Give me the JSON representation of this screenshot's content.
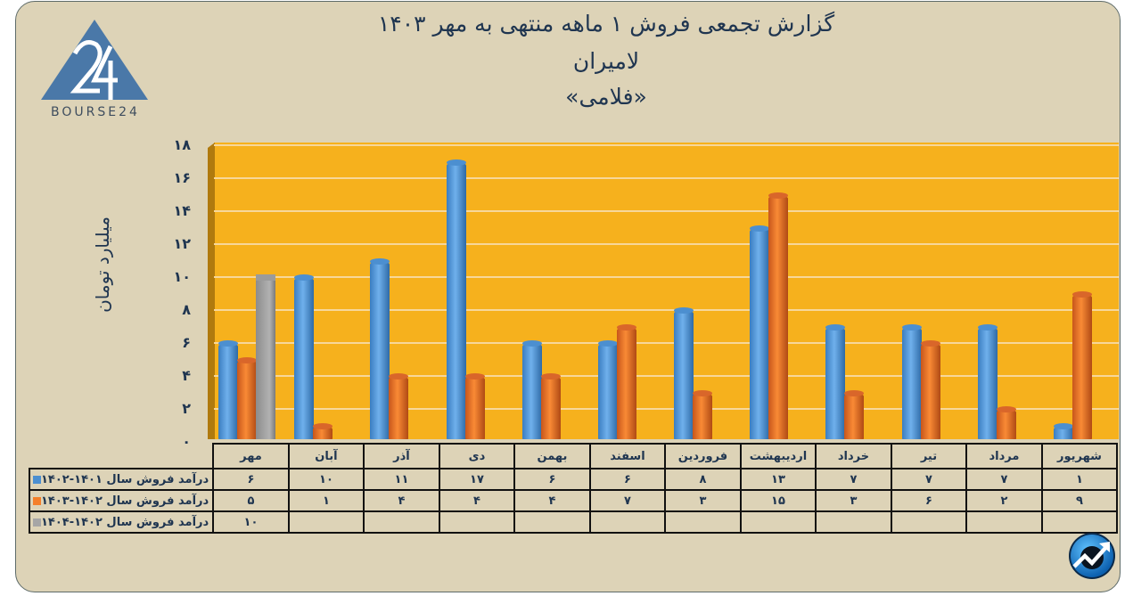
{
  "header": {
    "title_line1": "گزارش تجمعی فروش ۱ ماهه منتهی به مهر ۱۴۰۳",
    "title_line2": "لامیران",
    "title_line3": "«فلامی»"
  },
  "logo": {
    "text": "BOURSE24",
    "mark": "24"
  },
  "axis": {
    "ylabel": "میلیارد تومان",
    "yticks": [
      "۰",
      "۲",
      "۴",
      "۶",
      "۸",
      "۱۰",
      "۱۲",
      "۱۴",
      "۱۶",
      "۱۸"
    ]
  },
  "colors": {
    "plot_bg": "#f6b11d",
    "series1": "#4c8fd0",
    "series2": "#f47f2a",
    "series3": "#a6a6a6",
    "page_bg": "#ddd3b7",
    "text": "#1f3550"
  },
  "table": {
    "months": [
      "مهر",
      "آبان",
      "آذر",
      "دی",
      "بهمن",
      "اسفند",
      "فروردین",
      "اردیبهشت",
      "خرداد",
      "تیر",
      "مرداد",
      "شهریور"
    ],
    "rows": [
      {
        "label": "درآمد فروش سال ۱۴۰۱-۱۴۰۲",
        "values": [
          "۶",
          "۱۰",
          "۱۱",
          "۱۷",
          "۶",
          "۶",
          "۸",
          "۱۳",
          "۷",
          "۷",
          "۷",
          "۱"
        ]
      },
      {
        "label": "درآمد فروش سال ۱۴۰۲-۱۴۰۳",
        "values": [
          "۵",
          "۱",
          "۴",
          "۴",
          "۴",
          "۷",
          "۳",
          "۱۵",
          "۳",
          "۶",
          "۲",
          "۹"
        ]
      },
      {
        "label": "درآمد فروش سال ۱۴۰۲-۱۴۰۴",
        "values": [
          "۱۰",
          "",
          "",
          "",
          "",
          "",
          "",
          "",
          "",
          "",
          "",
          ""
        ]
      }
    ]
  },
  "chart_data": {
    "type": "bar",
    "title": "گزارش تجمعی فروش ۱ ماهه منتهی به مهر ۱۴۰۳ - لامیران «فلامی»",
    "xlabel": "",
    "ylabel": "میلیارد تومان",
    "ylim": [
      0,
      18
    ],
    "ytick_step": 2,
    "grid": true,
    "legend_position": "table-left",
    "categories": [
      "مهر",
      "آبان",
      "آذر",
      "دی",
      "بهمن",
      "اسفند",
      "فروردین",
      "اردیبهشت",
      "خرداد",
      "تیر",
      "مرداد",
      "شهریور"
    ],
    "series": [
      {
        "name": "درآمد فروش سال ۱۴۰۱-۱۴۰۲",
        "color": "#4c8fd0",
        "values": [
          6,
          10,
          11,
          17,
          6,
          6,
          8,
          13,
          7,
          7,
          7,
          1
        ]
      },
      {
        "name": "درآمد فروش سال ۱۴۰۲-۱۴۰۳",
        "color": "#f47f2a",
        "values": [
          5,
          1,
          4,
          4,
          4,
          7,
          3,
          15,
          3,
          6,
          2,
          9
        ]
      },
      {
        "name": "درآمد فروش سال ۱۴۰۲-۱۴۰۴",
        "color": "#a6a6a6",
        "values": [
          10,
          null,
          null,
          null,
          null,
          null,
          null,
          null,
          null,
          null,
          null,
          null
        ]
      }
    ]
  }
}
